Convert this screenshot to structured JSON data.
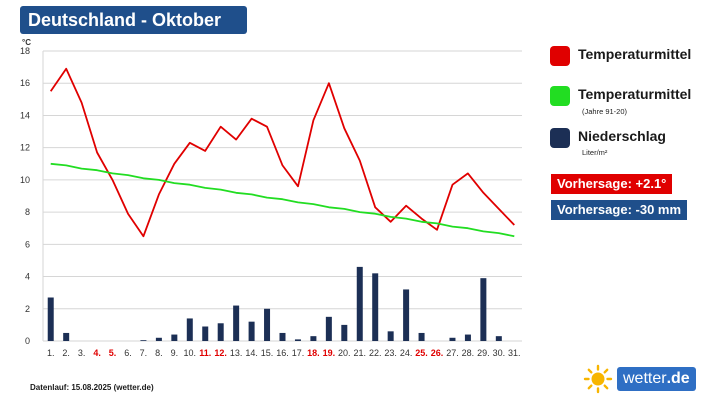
{
  "header": {
    "title": "Deutschland - Oktober"
  },
  "legend": [
    {
      "label": "Temperaturmittel",
      "sub": "",
      "color": "#e00000"
    },
    {
      "label": "Temperaturmittel",
      "sub": "(Jahre 91-20)",
      "color": "#22dd22"
    },
    {
      "label": "Niederschlag",
      "sub": "Liter/m²",
      "color": "#1c2f55"
    }
  ],
  "forecast": {
    "temp": {
      "text": "Vorhersage: +2.1°",
      "color": "#e00000"
    },
    "precip": {
      "text": "Vorhersage: -30 mm",
      "color": "#1f4f8b"
    }
  },
  "footer": {
    "data_note": "Datenlauf: 15.08.2025 (wetter.de)"
  },
  "logo": {
    "text_light": "wetter",
    "text_dot": ".de"
  },
  "chart_data": {
    "type": "line",
    "x": [
      "1.",
      "2.",
      "3.",
      "4.",
      "5.",
      "6.",
      "7.",
      "8.",
      "9.",
      "10.",
      "11.",
      "12.",
      "13.",
      "14.",
      "15.",
      "16.",
      "17.",
      "18.",
      "19.",
      "20.",
      "21.",
      "22.",
      "23.",
      "24.",
      "25.",
      "26.",
      "27.",
      "28.",
      "29.",
      "30.",
      "31."
    ],
    "weekend_days": [
      "4.",
      "5.",
      "11.",
      "12.",
      "18.",
      "19.",
      "25.",
      "26."
    ],
    "y_unit_label": "°C",
    "ylim": [
      0,
      18
    ],
    "yticks": [
      0,
      2,
      4,
      6,
      8,
      10,
      12,
      14,
      16,
      18
    ],
    "grid": true,
    "series": [
      {
        "name": "Temperaturmittel",
        "type": "line",
        "color": "#e00000",
        "values": [
          15.5,
          16.9,
          14.8,
          11.7,
          10.0,
          7.9,
          6.5,
          9.1,
          11.0,
          12.3,
          11.8,
          13.3,
          12.5,
          13.8,
          13.3,
          10.9,
          9.6,
          13.7,
          16.0,
          13.2,
          11.2,
          8.3,
          7.4,
          8.4,
          7.6,
          6.9,
          9.7,
          10.4,
          9.2,
          8.2,
          7.2
        ]
      },
      {
        "name": "Temperaturmittel (Jahre 91-20)",
        "type": "line",
        "color": "#22dd22",
        "values": [
          11.0,
          10.9,
          10.7,
          10.6,
          10.4,
          10.3,
          10.1,
          10.0,
          9.8,
          9.7,
          9.5,
          9.4,
          9.2,
          9.1,
          8.9,
          8.8,
          8.6,
          8.5,
          8.3,
          8.2,
          8.0,
          7.9,
          7.7,
          7.6,
          7.4,
          7.3,
          7.1,
          7.0,
          6.8,
          6.7,
          6.5
        ]
      },
      {
        "name": "Niederschlag",
        "type": "bar",
        "color": "#1c2f55",
        "values": [
          2.7,
          0.5,
          0,
          0,
          0,
          0,
          0.05,
          0.2,
          0.4,
          1.4,
          0.9,
          1.1,
          2.2,
          1.2,
          2.0,
          0.5,
          0.1,
          0.3,
          1.5,
          1.0,
          4.6,
          4.2,
          0.6,
          3.2,
          0.5,
          0,
          0.2,
          0.4,
          3.9,
          0.3,
          0
        ]
      }
    ]
  }
}
